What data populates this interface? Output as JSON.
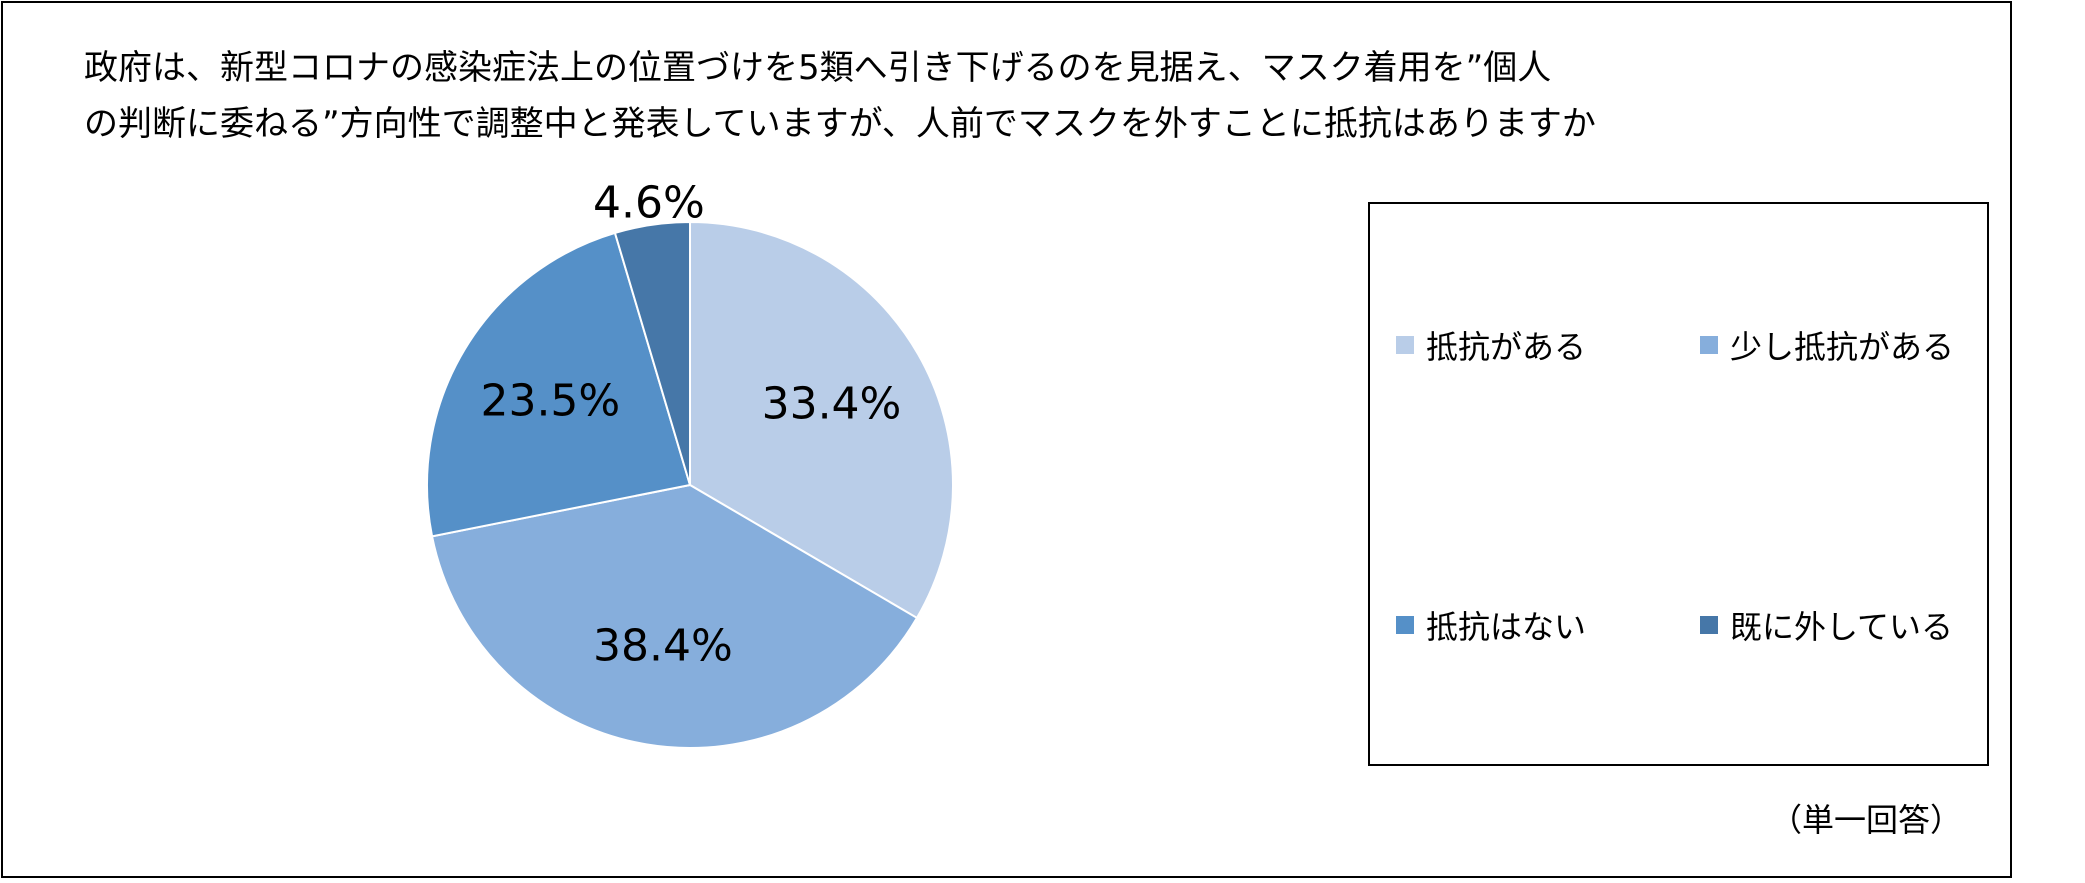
{
  "chart_data": {
    "type": "pie",
    "title_lines": [
      "政府は、新型コロナの感染症法上の位置づけを5類へ引き下げるのを見据え、マスク着用を”個人",
      "の判断に委ねる”方向性で調整中と発表していますが、人前でマスクを外すことに抵抗はありますか"
    ],
    "slices": [
      {
        "label": "抵抗がある",
        "value": 33.4,
        "display": "33.4%",
        "color": "#B9CDE8"
      },
      {
        "label": "少し抵抗がある",
        "value": 38.4,
        "display": "38.4%",
        "color": "#86AEDC"
      },
      {
        "label": "抵抗はない",
        "value": 23.5,
        "display": "23.5%",
        "color": "#5590C8"
      },
      {
        "label": "既に外している",
        "value": 4.6,
        "display": "4.6%",
        "color": "#4677A8"
      }
    ],
    "legend_position": "right",
    "note": "（単一回答）"
  }
}
